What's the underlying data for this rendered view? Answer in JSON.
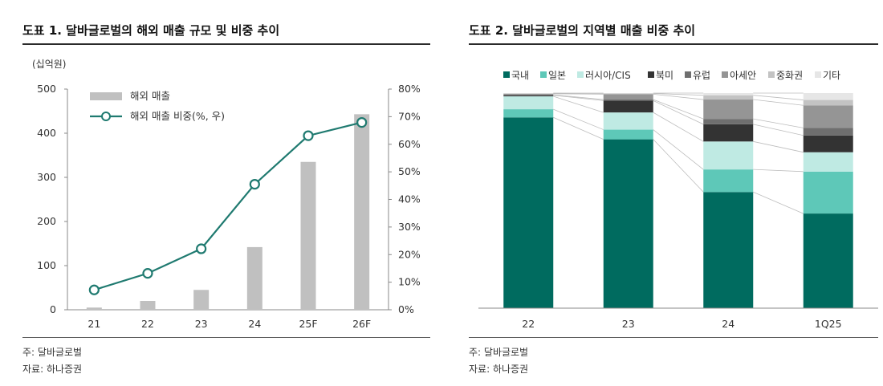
{
  "chart_data": [
    {
      "type": "bar+line",
      "title": "도표 1. 달바글로벌의 해외 매출 규모 및 비중 추이",
      "unit_label": "(십억원)",
      "categories": [
        "21",
        "22",
        "23",
        "24",
        "25F",
        "26F"
      ],
      "y_left": {
        "ylim": [
          0,
          500
        ],
        "ticks": [
          0,
          100,
          200,
          300,
          400,
          500
        ]
      },
      "y_right": {
        "ylim": [
          0,
          80
        ],
        "ticks": [
          "0%",
          "10%",
          "20%",
          "30%",
          "40%",
          "50%",
          "60%",
          "70%",
          "80%"
        ]
      },
      "series": [
        {
          "name": "해외 매출",
          "type": "bar",
          "axis": "left",
          "color": "#c0c0c0",
          "values": [
            5,
            20,
            45,
            142,
            335,
            443
          ]
        },
        {
          "name": "해외 매출 비중(%, 우)",
          "type": "line",
          "axis": "right",
          "color": "#1f7a70",
          "values": [
            7.2,
            13.2,
            22.1,
            45.5,
            63.1,
            67.9
          ]
        }
      ],
      "legend_position": "top-left",
      "grid": false,
      "notes": [
        "주: 달바글로벌",
        "자료: 하나증권"
      ]
    },
    {
      "type": "stacked-bar",
      "title": "도표 2. 달바글로벌의 지역별 매출 비중 추이",
      "categories": [
        "22",
        "23",
        "24",
        "1Q25"
      ],
      "ylim": [
        0,
        100
      ],
      "series": [
        {
          "name": "국내",
          "color": "#006b5f",
          "values": [
            88.7,
            78.5,
            54.0,
            44.0
          ]
        },
        {
          "name": "일본",
          "color": "#5ec8b8",
          "values": [
            3.8,
            4.5,
            10.5,
            19.5
          ]
        },
        {
          "name": "러시아/CIS",
          "color": "#bfeae3",
          "values": [
            6.0,
            8.0,
            13.0,
            9.0
          ]
        },
        {
          "name": "북미",
          "color": "#333333",
          "values": [
            0.5,
            5.5,
            8.0,
            7.8
          ]
        },
        {
          "name": "유럽",
          "color": "#6f6f6f",
          "values": [
            0.2,
            0.5,
            2.5,
            3.5
          ]
        },
        {
          "name": "아세안",
          "color": "#959595",
          "values": [
            0.5,
            2.5,
            9.0,
            10.5
          ]
        },
        {
          "name": "중화권",
          "color": "#c3c3c3",
          "values": [
            0.2,
            0.3,
            2.0,
            2.5
          ]
        },
        {
          "name": "기타",
          "color": "#e6e6e6",
          "values": [
            0.1,
            0.2,
            1.0,
            3.2
          ]
        }
      ],
      "legend_position": "top",
      "grid": false,
      "notes": [
        "주: 달바글로벌",
        "자료: 하나증권"
      ]
    }
  ]
}
